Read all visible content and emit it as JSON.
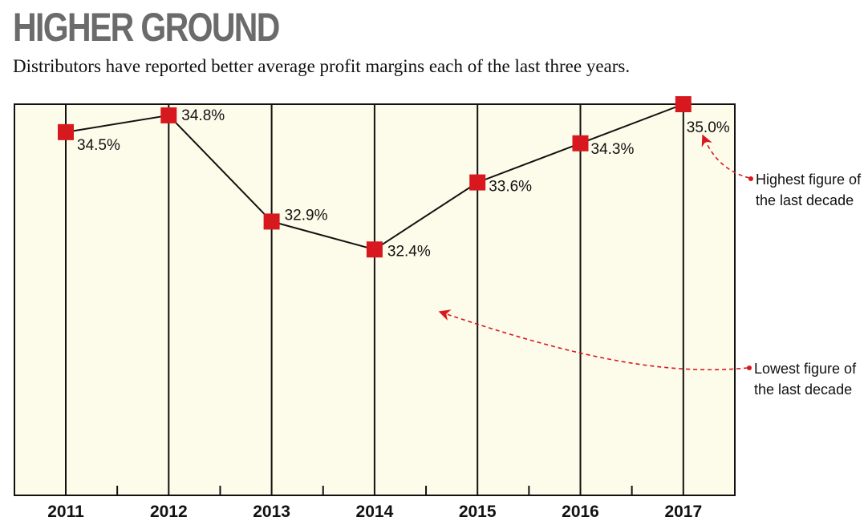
{
  "title": "HIGHER GROUND",
  "subtitle": "Distributors have reported better average profit margins each of the last three years.",
  "colors": {
    "background": "#fdfbe9",
    "marker": "#d7191f",
    "line": "#111111",
    "annotation": "#d7191f",
    "title": "#6b6b6b"
  },
  "chart_data": {
    "type": "line",
    "title": "HIGHER GROUND",
    "subtitle": "Distributors have reported better average profit margins each of the last three years.",
    "categories": [
      "2011",
      "2012",
      "2013",
      "2014",
      "2015",
      "2016",
      "2017"
    ],
    "values": [
      34.5,
      34.8,
      32.9,
      32.4,
      33.6,
      34.3,
      35.0
    ],
    "data_labels": [
      "34.5%",
      "34.8%",
      "32.9%",
      "32.4%",
      "33.6%",
      "34.3%",
      "35.0%"
    ],
    "ylim": [
      28.0,
      35.0
    ],
    "grid": "vertical lines at each year",
    "legend": "none",
    "annotations": [
      {
        "text_lines": [
          "Highest figure of",
          "the last decade"
        ],
        "points_to": "2017"
      },
      {
        "text_lines": [
          "Lowest figure of",
          "the last decade"
        ],
        "points_to": "2014"
      }
    ]
  }
}
